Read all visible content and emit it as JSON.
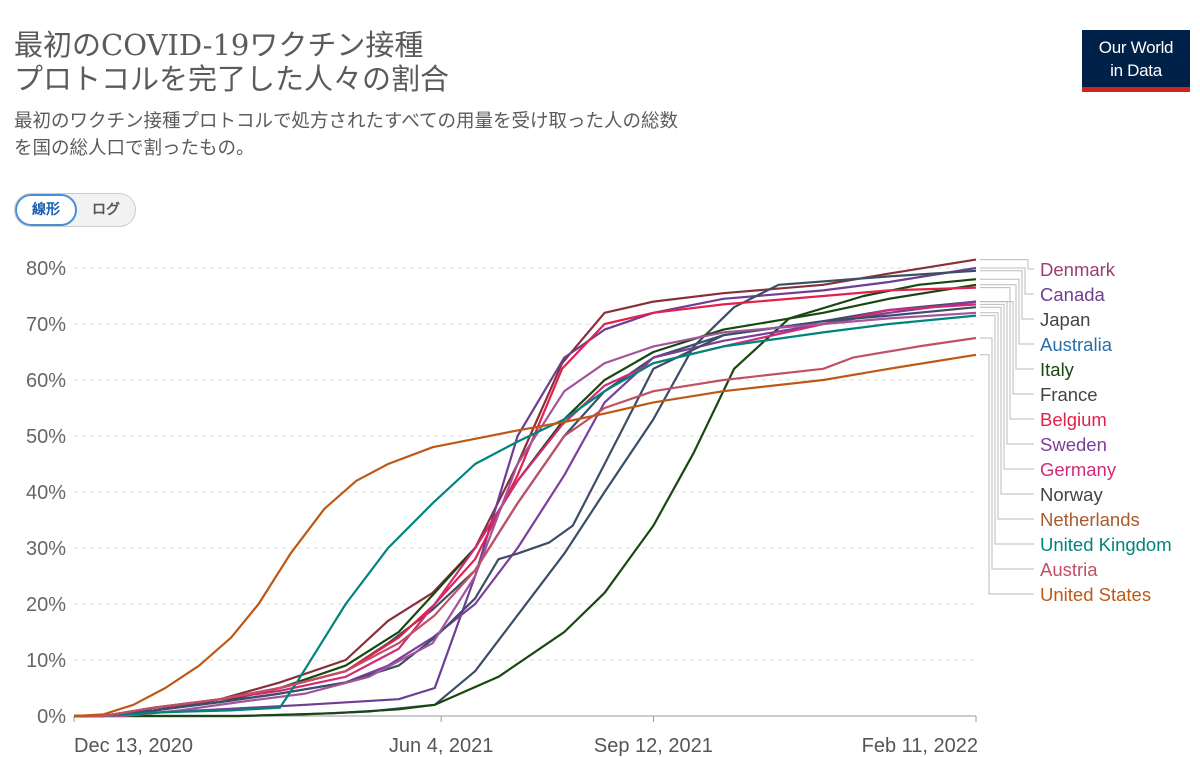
{
  "title": "最初のCOVID-19ワクチン接種プロトコルを完了した人々の割合",
  "title_lines": [
    "最初のCOVID-19ワクチン接種",
    "プロトコルを完了した人々の割合"
  ],
  "subtitle_lines": [
    "最初のワクチン接種プロトコルで処方されたすべての用量を受け取った人の総数",
    "を国の総人口で割ったもの。"
  ],
  "logo": {
    "line1": "Our World",
    "line2": "in Data"
  },
  "scale_toggle": {
    "linear": "線形",
    "log": "ログ",
    "selected": "linear"
  },
  "colors": {
    "logo_bg": "#002147",
    "logo_accent": "#ce261e"
  },
  "chart_data": {
    "type": "line",
    "x_type": "date",
    "y_unit": "%",
    "ylim": [
      0,
      80
    ],
    "yticks": [
      "0%",
      "10%",
      "20%",
      "30%",
      "40%",
      "50%",
      "60%",
      "70%",
      "80%"
    ],
    "xticks": [
      "Dec 13, 2020",
      "Jun 4, 2021",
      "Sep 12, 2021",
      "Feb 11, 2022"
    ],
    "xlim": [
      "2020-12-13",
      "2022-02-11"
    ],
    "grid": "horizontal dashed",
    "legend": "right, ordered by final value",
    "series": [
      {
        "name": "Denmark",
        "color": "#883039",
        "label_color": "#9a3d74",
        "points": [
          [
            "2020-12-27",
            0
          ],
          [
            "2021-01-20",
            1.5
          ],
          [
            "2021-02-20",
            3
          ],
          [
            "2021-03-20",
            6
          ],
          [
            "2021-04-20",
            10
          ],
          [
            "2021-05-10",
            17
          ],
          [
            "2021-05-31",
            22
          ],
          [
            "2021-06-20",
            30
          ],
          [
            "2021-07-10",
            45
          ],
          [
            "2021-07-31",
            63
          ],
          [
            "2021-08-20",
            72
          ],
          [
            "2021-09-12",
            74
          ],
          [
            "2021-10-15",
            75.5
          ],
          [
            "2021-12-01",
            77
          ],
          [
            "2022-01-01",
            79
          ],
          [
            "2022-02-11",
            81.5
          ]
        ]
      },
      {
        "name": "Canada",
        "color": "#6d3e91",
        "label_color": "#6d3e91",
        "points": [
          [
            "2020-12-15",
            0
          ],
          [
            "2021-02-01",
            0.8
          ],
          [
            "2021-04-01",
            2
          ],
          [
            "2021-05-15",
            3
          ],
          [
            "2021-06-01",
            5
          ],
          [
            "2021-06-20",
            25
          ],
          [
            "2021-07-10",
            50
          ],
          [
            "2021-08-01",
            64
          ],
          [
            "2021-08-20",
            69
          ],
          [
            "2021-09-12",
            72
          ],
          [
            "2021-10-15",
            74.5
          ],
          [
            "2021-12-01",
            76
          ],
          [
            "2022-01-01",
            77.5
          ],
          [
            "2022-02-11",
            80
          ]
        ]
      },
      {
        "name": "Japan",
        "color": "#3c4e66",
        "label_color": "#444444",
        "points": [
          [
            "2021-03-01",
            0
          ],
          [
            "2021-04-01",
            0.3
          ],
          [
            "2021-05-01",
            0.8
          ],
          [
            "2021-06-01",
            2
          ],
          [
            "2021-06-20",
            8
          ],
          [
            "2021-07-10",
            18
          ],
          [
            "2021-08-01",
            29
          ],
          [
            "2021-08-20",
            40
          ],
          [
            "2021-09-12",
            53
          ],
          [
            "2021-10-01",
            66
          ],
          [
            "2021-10-20",
            73
          ],
          [
            "2021-11-10",
            77
          ],
          [
            "2022-01-01",
            78.5
          ],
          [
            "2022-02-11",
            79.5
          ]
        ]
      },
      {
        "name": "Australia",
        "color": "#18470f",
        "label_color": "#2a6fa8",
        "points": [
          [
            "2021-03-01",
            0
          ],
          [
            "2021-04-15",
            0.5
          ],
          [
            "2021-05-15",
            1.2
          ],
          [
            "2021-06-01",
            2
          ],
          [
            "2021-07-01",
            7
          ],
          [
            "2021-08-01",
            15
          ],
          [
            "2021-08-20",
            22
          ],
          [
            "2021-09-12",
            34
          ],
          [
            "2021-10-01",
            47
          ],
          [
            "2021-10-20",
            62
          ],
          [
            "2021-11-15",
            71
          ],
          [
            "2021-12-20",
            75
          ],
          [
            "2022-01-15",
            77
          ],
          [
            "2022-02-11",
            78
          ]
        ]
      },
      {
        "name": "Italy",
        "color": "#18470f",
        "label_color": "#18470f",
        "points": [
          [
            "2020-12-27",
            0
          ],
          [
            "2021-01-20",
            1.5
          ],
          [
            "2021-02-20",
            2.5
          ],
          [
            "2021-03-20",
            5
          ],
          [
            "2021-04-20",
            9
          ],
          [
            "2021-05-15",
            15
          ],
          [
            "2021-06-01",
            22
          ],
          [
            "2021-06-20",
            30
          ],
          [
            "2021-07-10",
            42
          ],
          [
            "2021-08-01",
            53
          ],
          [
            "2021-08-20",
            60
          ],
          [
            "2021-09-12",
            65
          ],
          [
            "2021-10-15",
            69
          ],
          [
            "2021-12-01",
            72
          ],
          [
            "2022-01-01",
            74.5
          ],
          [
            "2022-02-11",
            77
          ]
        ]
      },
      {
        "name": "France",
        "color": "#3c4e66",
        "label_color": "#444444",
        "points": [
          [
            "2020-12-27",
            0
          ],
          [
            "2021-01-20",
            1
          ],
          [
            "2021-02-20",
            3
          ],
          [
            "2021-03-20",
            5
          ],
          [
            "2021-04-20",
            8
          ],
          [
            "2021-05-10",
            13
          ],
          [
            "2021-05-31",
            19
          ],
          [
            "2021-06-20",
            26
          ],
          [
            "2021-07-10",
            38
          ],
          [
            "2021-08-01",
            50
          ],
          [
            "2021-08-20",
            58
          ],
          [
            "2021-09-12",
            64
          ],
          [
            "2021-10-15",
            68
          ],
          [
            "2021-12-01",
            70.5
          ],
          [
            "2022-01-01",
            72.5
          ],
          [
            "2022-02-11",
            74
          ]
        ]
      },
      {
        "name": "Belgium",
        "color": "#e5204c",
        "label_color": "#e5204c",
        "points": [
          [
            "2020-12-28",
            0
          ],
          [
            "2021-01-20",
            1.5
          ],
          [
            "2021-02-20",
            3
          ],
          [
            "2021-03-20",
            5
          ],
          [
            "2021-04-20",
            8
          ],
          [
            "2021-05-15",
            14
          ],
          [
            "2021-06-01",
            20
          ],
          [
            "2021-06-20",
            28
          ],
          [
            "2021-07-10",
            43
          ],
          [
            "2021-07-31",
            62
          ],
          [
            "2021-08-20",
            70
          ],
          [
            "2021-09-12",
            72
          ],
          [
            "2021-10-15",
            73.5
          ],
          [
            "2021-12-01",
            75
          ],
          [
            "2022-01-01",
            76
          ],
          [
            "2022-02-11",
            76.5
          ]
        ]
      },
      {
        "name": "Sweden",
        "color": "#7d3e9b",
        "label_color": "#7d3e9b",
        "points": [
          [
            "2020-12-27",
            0
          ],
          [
            "2021-01-20",
            1
          ],
          [
            "2021-02-20",
            2.5
          ],
          [
            "2021-03-20",
            4
          ],
          [
            "2021-04-20",
            6
          ],
          [
            "2021-05-10",
            9
          ],
          [
            "2021-05-31",
            14
          ],
          [
            "2021-06-20",
            20
          ],
          [
            "2021-07-10",
            30
          ],
          [
            "2021-08-01",
            43
          ],
          [
            "2021-08-20",
            56
          ],
          [
            "2021-09-12",
            64
          ],
          [
            "2021-10-15",
            67
          ],
          [
            "2021-12-01",
            70
          ],
          [
            "2022-01-01",
            72
          ],
          [
            "2022-02-11",
            74
          ]
        ]
      },
      {
        "name": "Germany",
        "color": "#d12a76",
        "label_color": "#d12a76",
        "points": [
          [
            "2020-12-27",
            0
          ],
          [
            "2021-01-20",
            1.5
          ],
          [
            "2021-02-20",
            3
          ],
          [
            "2021-03-20",
            4.5
          ],
          [
            "2021-04-20",
            7
          ],
          [
            "2021-05-15",
            12
          ],
          [
            "2021-06-01",
            20
          ],
          [
            "2021-06-20",
            30
          ],
          [
            "2021-07-10",
            42
          ],
          [
            "2021-07-31",
            52
          ],
          [
            "2021-08-20",
            59
          ],
          [
            "2021-09-12",
            63
          ],
          [
            "2021-10-15",
            66
          ],
          [
            "2021-12-01",
            70
          ],
          [
            "2022-01-01",
            72.5
          ],
          [
            "2022-02-11",
            73.5
          ]
        ]
      },
      {
        "name": "Norway",
        "color": "#3c4e66",
        "label_color": "#444444",
        "points": [
          [
            "2020-12-27",
            0
          ],
          [
            "2021-01-20",
            1
          ],
          [
            "2021-02-20",
            2.5
          ],
          [
            "2021-03-20",
            4
          ],
          [
            "2021-04-20",
            6
          ],
          [
            "2021-05-15",
            9
          ],
          [
            "2021-06-01",
            14
          ],
          [
            "2021-06-20",
            21
          ],
          [
            "2021-07-01",
            28
          ],
          [
            "2021-07-10",
            29
          ],
          [
            "2021-07-25",
            31
          ],
          [
            "2021-08-05",
            34
          ],
          [
            "2021-08-20",
            45
          ],
          [
            "2021-09-12",
            62
          ],
          [
            "2021-10-15",
            68
          ],
          [
            "2021-12-01",
            70.5
          ],
          [
            "2022-01-01",
            71.5
          ],
          [
            "2022-02-11",
            73
          ]
        ]
      },
      {
        "name": "Netherlands",
        "color": "#a2559c",
        "label_color": "#a95a2b",
        "points": [
          [
            "2021-01-06",
            0
          ],
          [
            "2021-02-01",
            1
          ],
          [
            "2021-03-01",
            2.5
          ],
          [
            "2021-04-01",
            4
          ],
          [
            "2021-05-01",
            7
          ],
          [
            "2021-05-31",
            13
          ],
          [
            "2021-06-20",
            25
          ],
          [
            "2021-07-10",
            45
          ],
          [
            "2021-08-01",
            58
          ],
          [
            "2021-08-20",
            63
          ],
          [
            "2021-09-12",
            66
          ],
          [
            "2021-10-15",
            68.5
          ],
          [
            "2021-12-01",
            70
          ],
          [
            "2022-01-01",
            71
          ],
          [
            "2022-02-11",
            72
          ]
        ]
      },
      {
        "name": "United Kingdom",
        "color": "#00847e",
        "label_color": "#00847e",
        "points": [
          [
            "2020-12-25",
            0
          ],
          [
            "2021-01-25",
            0.7
          ],
          [
            "2021-02-25",
            1
          ],
          [
            "2021-03-20",
            1.5
          ],
          [
            "2021-03-28",
            6
          ],
          [
            "2021-04-20",
            20
          ],
          [
            "2021-05-10",
            30
          ],
          [
            "2021-05-31",
            38
          ],
          [
            "2021-06-20",
            45
          ],
          [
            "2021-07-10",
            49
          ],
          [
            "2021-08-01",
            53
          ],
          [
            "2021-08-20",
            58
          ],
          [
            "2021-09-12",
            63
          ],
          [
            "2021-10-15",
            66
          ],
          [
            "2021-12-01",
            68.5
          ],
          [
            "2022-01-01",
            70
          ],
          [
            "2022-02-11",
            71.5
          ]
        ]
      },
      {
        "name": "Austria",
        "color": "#c15065",
        "label_color": "#c15065",
        "points": [
          [
            "2020-12-27",
            0
          ],
          [
            "2021-01-20",
            1.5
          ],
          [
            "2021-02-20",
            3
          ],
          [
            "2021-03-20",
            5
          ],
          [
            "2021-04-20",
            8
          ],
          [
            "2021-05-15",
            13
          ],
          [
            "2021-06-01",
            18
          ],
          [
            "2021-06-20",
            26
          ],
          [
            "2021-07-10",
            38
          ],
          [
            "2021-08-01",
            50
          ],
          [
            "2021-08-20",
            55
          ],
          [
            "2021-09-12",
            58
          ],
          [
            "2021-10-15",
            60
          ],
          [
            "2021-12-01",
            62
          ],
          [
            "2021-12-15",
            64
          ],
          [
            "2022-01-15",
            66
          ],
          [
            "2022-02-11",
            67.5
          ]
        ]
      },
      {
        "name": "United States",
        "color": "#be5915",
        "label_color": "#be5915",
        "points": [
          [
            "2020-12-14",
            0
          ],
          [
            "2020-12-27",
            0.3
          ],
          [
            "2021-01-10",
            2
          ],
          [
            "2021-01-25",
            5
          ],
          [
            "2021-02-10",
            9
          ],
          [
            "2021-02-25",
            14
          ],
          [
            "2021-03-10",
            20
          ],
          [
            "2021-03-25",
            29
          ],
          [
            "2021-04-10",
            37
          ],
          [
            "2021-04-25",
            42
          ],
          [
            "2021-05-10",
            45
          ],
          [
            "2021-05-31",
            48
          ],
          [
            "2021-06-20",
            49.5
          ],
          [
            "2021-07-10",
            51
          ],
          [
            "2021-08-01",
            52.5
          ],
          [
            "2021-08-20",
            54
          ],
          [
            "2021-09-12",
            56
          ],
          [
            "2021-10-15",
            58
          ],
          [
            "2021-12-01",
            60
          ],
          [
            "2022-01-01",
            62
          ],
          [
            "2022-02-11",
            64.5
          ]
        ]
      }
    ]
  }
}
